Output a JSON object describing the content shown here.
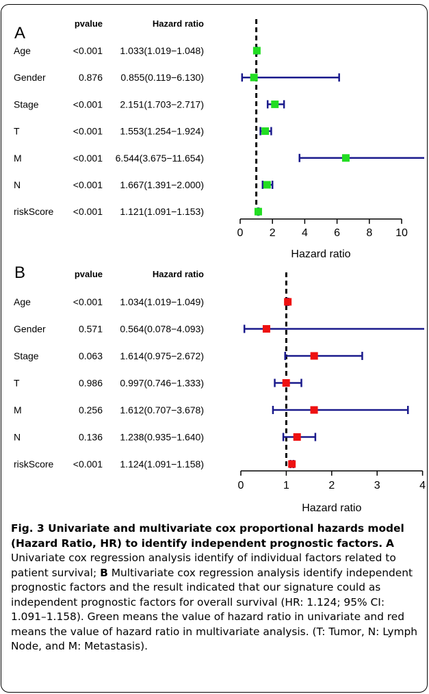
{
  "chart_data": [
    {
      "type": "forest",
      "panel_label": "A",
      "header_pvalue": "pvalue",
      "header_hr": "Hazard ratio",
      "xlabel": "Hazard ratio",
      "xlim": [
        0,
        11
      ],
      "xticks": [
        0,
        2,
        4,
        6,
        8,
        10
      ],
      "reference_line": 1,
      "marker_color": "#22dd22",
      "ci_color": "#1a1a8c",
      "rows": [
        {
          "label": "Age",
          "pvalue": "<0.001",
          "hr_text": "1.033(1.019−1.048)",
          "hr": 1.033,
          "lower": 1.019,
          "upper": 1.048
        },
        {
          "label": "Gender",
          "pvalue": "0.876",
          "hr_text": "0.855(0.119−6.130)",
          "hr": 0.855,
          "lower": 0.119,
          "upper": 6.13
        },
        {
          "label": "Stage",
          "pvalue": "<0.001",
          "hr_text": "2.151(1.703−2.717)",
          "hr": 2.151,
          "lower": 1.703,
          "upper": 2.717
        },
        {
          "label": "T",
          "pvalue": "<0.001",
          "hr_text": "1.553(1.254−1.924)",
          "hr": 1.553,
          "lower": 1.254,
          "upper": 1.924
        },
        {
          "label": "M",
          "pvalue": "<0.001",
          "hr_text": "6.544(3.675−11.654)",
          "hr": 6.544,
          "lower": 3.675,
          "upper": 11.654
        },
        {
          "label": "N",
          "pvalue": "<0.001",
          "hr_text": "1.667(1.391−2.000)",
          "hr": 1.667,
          "lower": 1.391,
          "upper": 2.0
        },
        {
          "label": "riskScore",
          "pvalue": "<0.001",
          "hr_text": "1.121(1.091−1.153)",
          "hr": 1.121,
          "lower": 1.091,
          "upper": 1.153
        }
      ]
    },
    {
      "type": "forest",
      "panel_label": "B",
      "header_pvalue": "pvalue",
      "header_hr": "Hazard ratio",
      "xlabel": "Hazard ratio",
      "xlim": [
        0,
        4
      ],
      "xticks": [
        0,
        1,
        2,
        3,
        4
      ],
      "reference_line": 1,
      "marker_color": "#ee1111",
      "ci_color": "#1a1a8c",
      "rows": [
        {
          "label": "Age",
          "pvalue": "<0.001",
          "hr_text": "1.034(1.019−1.049)",
          "hr": 1.034,
          "lower": 1.019,
          "upper": 1.049
        },
        {
          "label": "Gender",
          "pvalue": "0.571",
          "hr_text": "0.564(0.078−4.093)",
          "hr": 0.564,
          "lower": 0.078,
          "upper": 4.093
        },
        {
          "label": "Stage",
          "pvalue": "0.063",
          "hr_text": "1.614(0.975−2.672)",
          "hr": 1.614,
          "lower": 0.975,
          "upper": 2.672
        },
        {
          "label": "T",
          "pvalue": "0.986",
          "hr_text": "0.997(0.746−1.333)",
          "hr": 0.997,
          "lower": 0.746,
          "upper": 1.333
        },
        {
          "label": "M",
          "pvalue": "0.256",
          "hr_text": "1.612(0.707−3.678)",
          "hr": 1.612,
          "lower": 0.707,
          "upper": 3.678
        },
        {
          "label": "N",
          "pvalue": "0.136",
          "hr_text": "1.238(0.935−1.640)",
          "hr": 1.238,
          "lower": 0.935,
          "upper": 1.64
        },
        {
          "label": "riskScore",
          "pvalue": "<0.001",
          "hr_text": "1.124(1.091−1.158)",
          "hr": 1.124,
          "lower": 1.091,
          "upper": 1.158
        }
      ]
    }
  ],
  "caption": {
    "title": "Fig. 3 Univariate and multivariate cox proportional hazards model (Hazard Ratio, HR) to identify independent prognostic factors.",
    "label_a": "A",
    "text_a": "Univariate cox regression analysis identify of individual factors related to patient survival;",
    "label_b": "B",
    "text_b": "Multivariate cox regression analysis identify independent prognostic factors and the result indicated that our signature could as independent prognostic factors for overall survival (HR: 1.124; 95% CI: 1.091–1.158). Green means the value of hazard ratio in univariate and red means the value of hazard ratio in multivariate analysis. (T: Tumor, N: Lymph Node, and M: Metastasis)."
  }
}
